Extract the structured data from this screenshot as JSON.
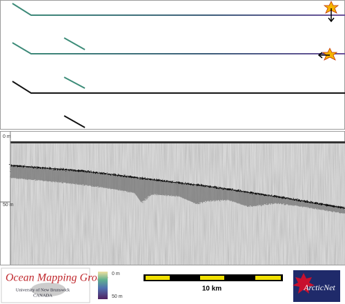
{
  "depth_profile": {
    "top_label": "0 m",
    "bottom_label": "50 m"
  },
  "logo": {
    "title": "Ocean Mapping Group",
    "subtitle": "University of New Brunswick",
    "country": "CANADA"
  },
  "color_scale": {
    "top_label": "0 m",
    "bottom_label": "50 m"
  },
  "scale_bar": {
    "label": "10 km"
  },
  "partner_logo": {
    "label": "ArcticNet"
  }
}
